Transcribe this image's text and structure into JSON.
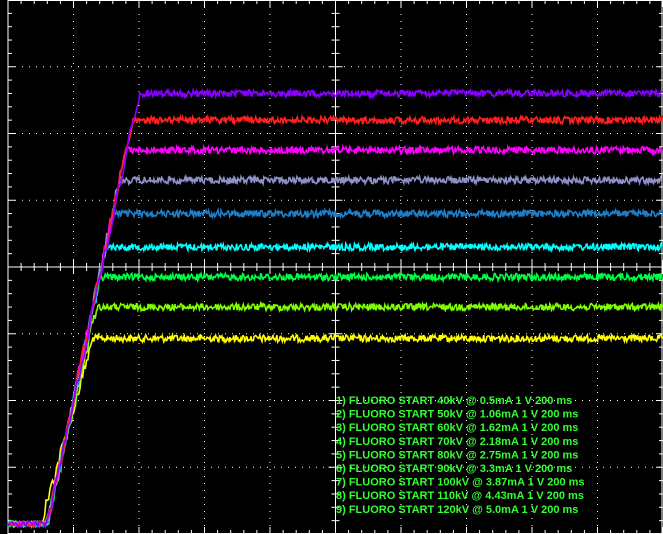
{
  "chart_data": {
    "type": "line",
    "grid": true,
    "background": "#000000",
    "grid_color": "#ffffff",
    "x_divisions": 10,
    "y_divisions": 8,
    "legend_color": "#33ff33",
    "series": [
      {
        "label": "1) FLUORO START 40kV @ 0.5mA  1  V   200 ms",
        "color": "#ffff00",
        "baseline_div": 0.15,
        "ramp_start": 0.5,
        "ramp_end": 1.3,
        "plateau_div": 2.93
      },
      {
        "label": "2) FLUORO START 50kV @ 1.06mA  1  V   200 ms",
        "color": "#7fff00",
        "baseline_div": 0.15,
        "ramp_start": 0.6,
        "ramp_end": 1.35,
        "plateau_div": 3.4
      },
      {
        "label": "3) FLUORO START 60kV @ 1.62mA  1  V   200 ms",
        "color": "#00ff44",
        "baseline_div": 0.15,
        "ramp_start": 0.6,
        "ramp_end": 1.4,
        "plateau_div": 3.85
      },
      {
        "label": "4) FLUORO START 70kV @ 2.18mA  1  V   200 ms",
        "color": "#00ffff",
        "baseline_div": 0.15,
        "ramp_start": 0.6,
        "ramp_end": 1.5,
        "plateau_div": 4.3
      },
      {
        "label": "5) FLUORO START 80kV @ 2.75mA  1  V   200 ms",
        "color": "#1e7fc8",
        "baseline_div": 0.15,
        "ramp_start": 0.6,
        "ramp_end": 1.6,
        "plateau_div": 4.8
      },
      {
        "label": "6) FLUORO START 90kV @ 3.3mA  1  V   200 ms",
        "color": "#9090c8",
        "baseline_div": 0.15,
        "ramp_start": 0.6,
        "ramp_end": 1.7,
        "plateau_div": 5.3
      },
      {
        "label": "7) FLUORO START 100kV @ 3.87mA  1  V   200 ms",
        "color": "#ff00ff",
        "baseline_div": 0.15,
        "ramp_start": 0.6,
        "ramp_end": 1.8,
        "plateau_div": 5.75
      },
      {
        "label": "8) FLUORO START 110kV @ 4.43mA  1  V   200 ms",
        "color": "#ff2020",
        "baseline_div": 0.15,
        "ramp_start": 0.6,
        "ramp_end": 1.9,
        "plateau_div": 6.2
      },
      {
        "label": "9) FLUORO START 120kV @ 5.0mA  1  V   200 ms",
        "color": "#8800ff",
        "baseline_div": 0.15,
        "ramp_start": 0.6,
        "ramp_end": 2.0,
        "plateau_div": 6.6
      }
    ]
  }
}
